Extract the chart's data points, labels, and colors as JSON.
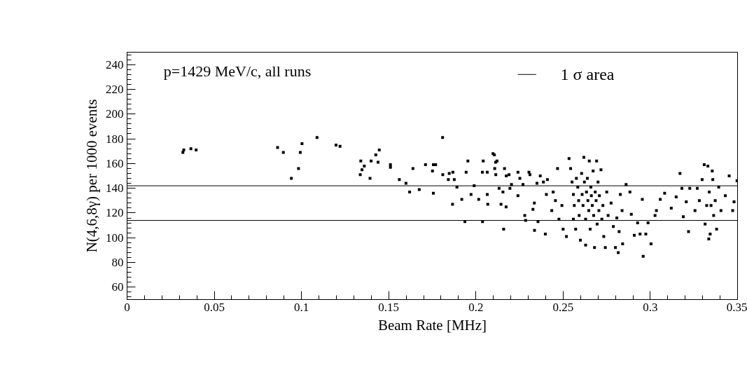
{
  "chart_data": {
    "type": "scatter",
    "xlabel": "Beam Rate [MHz]",
    "ylabel": "N(4,6,8γ) per 1000 events",
    "annotations": [
      "p=1429 MeV/c, all runs"
    ],
    "xlim": [
      0,
      0.35
    ],
    "ylim": [
      50,
      250
    ],
    "xticks": [
      0,
      0.05,
      0.1,
      0.15,
      0.2,
      0.25,
      0.3,
      0.35
    ],
    "yticks": [
      60,
      80,
      100,
      120,
      140,
      160,
      180,
      200,
      220,
      240
    ],
    "grid": false,
    "legend": "top right",
    "marker": "square",
    "ref_lines": [
      {
        "axis": "y",
        "value": 142,
        "label": "1 σ area",
        "color": "#000000"
      },
      {
        "axis": "y",
        "value": 114,
        "color": "#000000"
      }
    ],
    "series": [
      {
        "color": "#000000",
        "x": [
          0.032,
          0.0325,
          0.0366,
          0.0396,
          0.0863,
          0.0896,
          0.0942,
          0.0983,
          0.0993,
          0.1003,
          0.1089,
          0.1198,
          0.1221,
          0.1337,
          0.134,
          0.1347,
          0.136,
          0.1393,
          0.1399,
          0.1426,
          0.1439,
          0.1446,
          0.151,
          0.151,
          0.1561,
          0.1599,
          0.162,
          0.1639,
          0.1675,
          0.1711,
          0.1751,
          0.1756,
          0.1769,
          0.1756,
          0.1809,
          0.181,
          0.1842,
          0.1847,
          0.1868,
          0.1866,
          0.1876,
          0.1891,
          0.1919,
          0.1937,
          0.1944,
          0.1954,
          0.1972,
          0.199,
          0.2016,
          0.2038,
          0.2042,
          0.2037,
          0.2065,
          0.2065,
          0.2068,
          0.2098,
          0.2108,
          0.2113,
          0.2114,
          0.2155,
          0.2195,
          0.2106,
          0.2121,
          0.2133,
          0.2144,
          0.2159,
          0.2164,
          0.2173,
          0.2174,
          0.219,
          0.2204,
          0.2241,
          0.2241,
          0.2252,
          0.227,
          0.2285,
          0.228,
          0.2304,
          0.231,
          0.2336,
          0.2335,
          0.2327,
          0.235,
          0.2356,
          0.2369,
          0.2387,
          0.2398,
          0.2404,
          0.241,
          0.2435,
          0.2443,
          0.2456,
          0.2468,
          0.2476,
          0.2493,
          0.25,
          0.2519,
          0.2534,
          0.2543,
          0.2551,
          0.2559,
          0.2559,
          0.2564,
          0.2572,
          0.2576,
          0.2584,
          0.2589,
          0.2592,
          0.2599,
          0.2606,
          0.2609,
          0.2614,
          0.2619,
          0.2622,
          0.2629,
          0.2629,
          0.2634,
          0.2639,
          0.2642,
          0.2647,
          0.265,
          0.2655,
          0.2659,
          0.2662,
          0.2667,
          0.2672,
          0.2675,
          0.268,
          0.2684,
          0.2689,
          0.2692,
          0.2695,
          0.27,
          0.2705,
          0.2708,
          0.2717,
          0.2722,
          0.2728,
          0.2733,
          0.2742,
          0.275,
          0.2758,
          0.2775,
          0.2788,
          0.28,
          0.2808,
          0.2816,
          0.2821,
          0.2828,
          0.2838,
          0.2841,
          0.2861,
          0.2883,
          0.2891,
          0.2908,
          0.2927,
          0.2941,
          0.2954,
          0.2959,
          0.2974,
          0.2987,
          0.3004,
          0.3027,
          0.3035,
          0.3057,
          0.3082,
          0.312,
          0.3148,
          0.317,
          0.3181,
          0.3189,
          0.3206,
          0.3219,
          0.3226,
          0.3256,
          0.3269,
          0.3281,
          0.3297,
          0.3309,
          0.3314,
          0.3323,
          0.333,
          0.3335,
          0.3338,
          0.3343,
          0.3348,
          0.3355,
          0.3358,
          0.3363,
          0.3372,
          0.338,
          0.3392,
          0.3405,
          0.343,
          0.3452,
          0.3472,
          0.348,
          0.3497
        ],
        "values": [
          169,
          171,
          172,
          171,
          173,
          169,
          148,
          156,
          169,
          176,
          181,
          175,
          174,
          151,
          162,
          155,
          158,
          148,
          162,
          167,
          161,
          171,
          159,
          157,
          147,
          144,
          137,
          156,
          139,
          159,
          154,
          159,
          159,
          136,
          181,
          151,
          147,
          152,
          153,
          127,
          147,
          141,
          131,
          113,
          153,
          162,
          135,
          142,
          131,
          113,
          162,
          153,
          153,
          135,
          127,
          168,
          156,
          161,
          151,
          137,
          140,
          167,
          162,
          140,
          127,
          107,
          156,
          125,
          150,
          151,
          143,
          153,
          134,
          148,
          143,
          114,
          118,
          153,
          151,
          106,
          128,
          123,
          144,
          113,
          150,
          145,
          103,
          135,
          147,
          122,
          137,
          130,
          156,
          115,
          126,
          107,
          101,
          164,
          156,
          145,
          135,
          115,
          126,
          107,
          148,
          141,
          130,
          118,
          98,
          152,
          135,
          126,
          165,
          145,
          115,
          94,
          137,
          148,
          130,
          122,
          162,
          107,
          141,
          134,
          126,
          154,
          118,
          92,
          137,
          130,
          162,
          111,
          145,
          122,
          134,
          155,
          115,
          126,
          101,
          92,
          137,
          118,
          128,
          109,
          92,
          116,
          88,
          105,
          135,
          122,
          95,
          143,
          137,
          119,
          102,
          112,
          103,
          131,
          85,
          103,
          112,
          95,
          118,
          122,
          131,
          136,
          124,
          133,
          152,
          140,
          117,
          129,
          105,
          140,
          122,
          140,
          130,
          147,
          159,
          111,
          126,
          158,
          99,
          137,
          103,
          126,
          154,
          147,
          118,
          130,
          107,
          141,
          122,
          134,
          150,
          122,
          129,
          146
        ]
      }
    ]
  }
}
